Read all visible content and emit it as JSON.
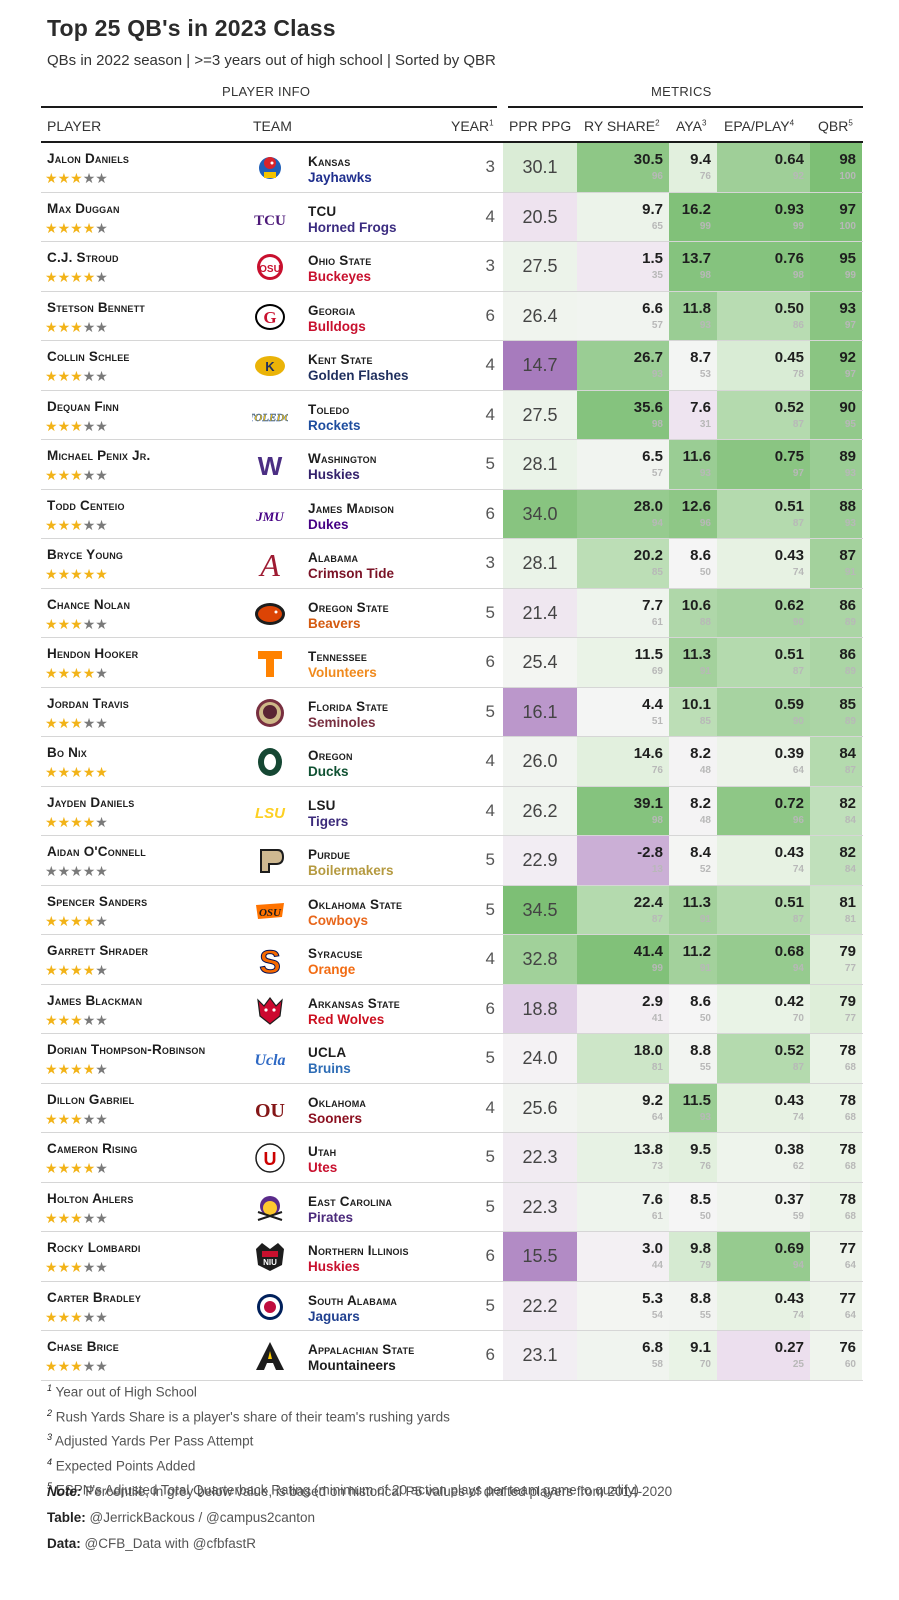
{
  "title": "Top 25 QB's in 2023 Class",
  "subtitle": "QBs in 2022 season | >=3 years out of high school | Sorted by QBR",
  "groups": {
    "player_info": "PLAYER INFO",
    "metrics": "METRICS"
  },
  "headers": {
    "player": "PLAYER",
    "team": "TEAM",
    "year": "YEAR",
    "year_sup": "1",
    "ppr": "PPR PPG",
    "ry": "RY SHARE",
    "ry_sup": "2",
    "aya": "AYA",
    "aya_sup": "3",
    "epa": "EPA/PLAY",
    "epa_sup": "4",
    "qbr": "QBR",
    "qbr_sup": "5"
  },
  "colors": {
    "green_dark": "#7dbf75",
    "green_light": "#e6f2e2",
    "neutral": "#f5f5f5",
    "purple_light": "#ecdfee",
    "purple_dark": "#a77bbd",
    "star_on": "#f2b318",
    "star_off": "#7a7a7a"
  },
  "chart_data": {
    "type": "table",
    "columns": [
      "Player",
      "Stars",
      "School",
      "Mascot",
      "Year",
      "PPR PPG",
      "RY Share",
      "RY Share Pct",
      "AYA",
      "AYA Pct",
      "EPA/Play",
      "EPA Pct",
      "QBR",
      "QBR Pct"
    ],
    "rows": [
      {
        "player": "Jalon Daniels",
        "stars": 3,
        "school": "Kansas",
        "mascot": "Jayhawks",
        "team_color": "#1f2f8e",
        "logo": "jayhawk-icon",
        "year": "3",
        "ppr": "30.1",
        "ry": "30.5",
        "ry_pct": "96",
        "aya": "9.4",
        "aya_pct": "76",
        "epa": "0.64",
        "epa_pct": "92",
        "qbr": "98",
        "qbr_pct": "100"
      },
      {
        "player": "Max Duggan",
        "stars": 4,
        "school": "TCU",
        "mascot": "Horned Frogs",
        "team_color": "#3b2c80",
        "logo": "tcu-icon",
        "year": "4",
        "ppr": "20.5",
        "ry": "9.7",
        "ry_pct": "65",
        "aya": "16.2",
        "aya_pct": "99",
        "epa": "0.93",
        "epa_pct": "99",
        "qbr": "97",
        "qbr_pct": "100"
      },
      {
        "player": "C.J. Stroud",
        "stars": 4,
        "school": "Ohio State",
        "mascot": "Buckeyes",
        "team_color": "#c8102e",
        "logo": "ohio-state-icon",
        "year": "3",
        "ppr": "27.5",
        "ry": "1.5",
        "ry_pct": "35",
        "aya": "13.7",
        "aya_pct": "98",
        "epa": "0.76",
        "epa_pct": "98",
        "qbr": "95",
        "qbr_pct": "99"
      },
      {
        "player": "Stetson Bennett",
        "stars": 3,
        "school": "Georgia",
        "mascot": "Bulldogs",
        "team_color": "#c8102e",
        "logo": "georgia-g-icon",
        "year": "6",
        "ppr": "26.4",
        "ry": "6.6",
        "ry_pct": "57",
        "aya": "11.8",
        "aya_pct": "93",
        "epa": "0.50",
        "epa_pct": "86",
        "qbr": "93",
        "qbr_pct": "97"
      },
      {
        "player": "Collin Schlee",
        "stars": 3,
        "school": "Kent State",
        "mascot": "Golden Flashes",
        "team_color": "#1f2f5e",
        "logo": "kent-state-icon",
        "year": "4",
        "ppr": "14.7",
        "ry": "26.7",
        "ry_pct": "93",
        "aya": "8.7",
        "aya_pct": "53",
        "epa": "0.45",
        "epa_pct": "78",
        "qbr": "92",
        "qbr_pct": "97"
      },
      {
        "player": "Dequan Finn",
        "stars": 3,
        "school": "Toledo",
        "mascot": "Rockets",
        "team_color": "#1e4d9e",
        "logo": "toledo-icon",
        "year": "4",
        "ppr": "27.5",
        "ry": "35.6",
        "ry_pct": "98",
        "aya": "7.6",
        "aya_pct": "31",
        "epa": "0.52",
        "epa_pct": "87",
        "qbr": "90",
        "qbr_pct": "95"
      },
      {
        "player": "Michael Penix Jr.",
        "stars": 3,
        "school": "Washington",
        "mascot": "Huskies",
        "team_color": "#33216b",
        "logo": "washington-w-icon",
        "year": "5",
        "ppr": "28.1",
        "ry": "6.5",
        "ry_pct": "57",
        "aya": "11.6",
        "aya_pct": "93",
        "epa": "0.75",
        "epa_pct": "97",
        "qbr": "89",
        "qbr_pct": "93"
      },
      {
        "player": "Todd Centeio",
        "stars": 3,
        "school": "James Madison",
        "mascot": "Dukes",
        "team_color": "#450084",
        "logo": "jmu-icon",
        "year": "6",
        "ppr": "34.0",
        "ry": "28.0",
        "ry_pct": "94",
        "aya": "12.6",
        "aya_pct": "96",
        "epa": "0.51",
        "epa_pct": "87",
        "qbr": "88",
        "qbr_pct": "93"
      },
      {
        "player": "Bryce Young",
        "stars": 5,
        "school": "Alabama",
        "mascot": "Crimson Tide",
        "team_color": "#7a1226",
        "logo": "alabama-a-icon",
        "year": "3",
        "ppr": "28.1",
        "ry": "20.2",
        "ry_pct": "85",
        "aya": "8.6",
        "aya_pct": "50",
        "epa": "0.43",
        "epa_pct": "74",
        "qbr": "87",
        "qbr_pct": "91"
      },
      {
        "player": "Chance Nolan",
        "stars": 3,
        "school": "Oregon State",
        "mascot": "Beavers",
        "team_color": "#d45a0f",
        "logo": "beaver-icon",
        "year": "5",
        "ppr": "21.4",
        "ry": "7.7",
        "ry_pct": "61",
        "aya": "10.6",
        "aya_pct": "88",
        "epa": "0.62",
        "epa_pct": "90",
        "qbr": "86",
        "qbr_pct": "89"
      },
      {
        "player": "Hendon Hooker",
        "stars": 4,
        "school": "Tennessee",
        "mascot": "Volunteers",
        "team_color": "#f08a1d",
        "logo": "tennessee-t-icon",
        "year": "6",
        "ppr": "25.4",
        "ry": "11.5",
        "ry_pct": "69",
        "aya": "11.3",
        "aya_pct": "91",
        "epa": "0.51",
        "epa_pct": "87",
        "qbr": "86",
        "qbr_pct": "89"
      },
      {
        "player": "Jordan Travis",
        "stars": 3,
        "school": "Florida State",
        "mascot": "Seminoles",
        "team_color": "#782f40",
        "logo": "seminole-icon",
        "year": "5",
        "ppr": "16.1",
        "ry": "4.4",
        "ry_pct": "51",
        "aya": "10.1",
        "aya_pct": "85",
        "epa": "0.59",
        "epa_pct": "90",
        "qbr": "85",
        "qbr_pct": "89"
      },
      {
        "player": "Bo Nix",
        "stars": 5,
        "school": "Oregon",
        "mascot": "Ducks",
        "team_color": "#0f5132",
        "logo": "oregon-o-icon",
        "year": "4",
        "ppr": "26.0",
        "ry": "14.6",
        "ry_pct": "76",
        "aya": "8.2",
        "aya_pct": "48",
        "epa": "0.39",
        "epa_pct": "64",
        "qbr": "84",
        "qbr_pct": "87"
      },
      {
        "player": "Jayden Daniels",
        "stars": 4,
        "school": "LSU",
        "mascot": "Tigers",
        "team_color": "#3b2a7a",
        "logo": "lsu-icon",
        "year": "4",
        "ppr": "26.2",
        "ry": "39.1",
        "ry_pct": "98",
        "aya": "8.2",
        "aya_pct": "48",
        "epa": "0.72",
        "epa_pct": "96",
        "qbr": "82",
        "qbr_pct": "84"
      },
      {
        "player": "Aidan O'Connell",
        "stars": 0,
        "school": "Purdue",
        "mascot": "Boilermakers",
        "team_color": "#b59a40",
        "logo": "purdue-p-icon",
        "year": "5",
        "ppr": "22.9",
        "ry": "-2.8",
        "ry_pct": "13",
        "aya": "8.4",
        "aya_pct": "52",
        "epa": "0.43",
        "epa_pct": "74",
        "qbr": "82",
        "qbr_pct": "84"
      },
      {
        "player": "Spencer Sanders",
        "stars": 4,
        "school": "Oklahoma State",
        "mascot": "Cowboys",
        "team_color": "#e8661a",
        "logo": "osu-icon",
        "year": "5",
        "ppr": "34.5",
        "ry": "22.4",
        "ry_pct": "87",
        "aya": "11.3",
        "aya_pct": "91",
        "epa": "0.51",
        "epa_pct": "87",
        "qbr": "81",
        "qbr_pct": "81"
      },
      {
        "player": "Garrett Shrader",
        "stars": 4,
        "school": "Syracuse",
        "mascot": "Orange",
        "team_color": "#f26b12",
        "logo": "syracuse-s-icon",
        "year": "4",
        "ppr": "32.8",
        "ry": "41.4",
        "ry_pct": "99",
        "aya": "11.2",
        "aya_pct": "91",
        "epa": "0.68",
        "epa_pct": "94",
        "qbr": "79",
        "qbr_pct": "77"
      },
      {
        "player": "James Blackman",
        "stars": 3,
        "school": "Arkansas State",
        "mascot": "Red Wolves",
        "team_color": "#cc0f1f",
        "logo": "red-wolf-icon",
        "year": "6",
        "ppr": "18.8",
        "ry": "2.9",
        "ry_pct": "41",
        "aya": "8.6",
        "aya_pct": "50",
        "epa": "0.42",
        "epa_pct": "70",
        "qbr": "79",
        "qbr_pct": "77"
      },
      {
        "player": "Dorian Thompson-Robinson",
        "stars": 4,
        "school": "UCLA",
        "mascot": "Bruins",
        "team_color": "#2d6cb5",
        "logo": "ucla-icon",
        "year": "5",
        "ppr": "24.0",
        "ry": "18.0",
        "ry_pct": "81",
        "aya": "8.8",
        "aya_pct": "55",
        "epa": "0.52",
        "epa_pct": "87",
        "qbr": "78",
        "qbr_pct": "68"
      },
      {
        "player": "Dillon Gabriel",
        "stars": 3,
        "school": "Oklahoma",
        "mascot": "Sooners",
        "team_color": "#8b0f1f",
        "logo": "ou-icon",
        "year": "4",
        "ppr": "25.6",
        "ry": "9.2",
        "ry_pct": "64",
        "aya": "11.5",
        "aya_pct": "93",
        "epa": "0.43",
        "epa_pct": "74",
        "qbr": "78",
        "qbr_pct": "68"
      },
      {
        "player": "Cameron Rising",
        "stars": 4,
        "school": "Utah",
        "mascot": "Utes",
        "team_color": "#c8102e",
        "logo": "utah-u-icon",
        "year": "5",
        "ppr": "22.3",
        "ry": "13.8",
        "ry_pct": "73",
        "aya": "9.5",
        "aya_pct": "76",
        "epa": "0.38",
        "epa_pct": "62",
        "qbr": "78",
        "qbr_pct": "68"
      },
      {
        "player": "Holton Ahlers",
        "stars": 3,
        "school": "East Carolina",
        "mascot": "Pirates",
        "team_color": "#4b2a7b",
        "logo": "pirate-icon",
        "year": "5",
        "ppr": "22.3",
        "ry": "7.6",
        "ry_pct": "61",
        "aya": "8.5",
        "aya_pct": "50",
        "epa": "0.37",
        "epa_pct": "59",
        "qbr": "78",
        "qbr_pct": "68"
      },
      {
        "player": "Rocky Lombardi",
        "stars": 3,
        "school": "Northern Illinois",
        "mascot": "Huskies",
        "team_color": "#c8102e",
        "logo": "niu-icon",
        "year": "6",
        "ppr": "15.5",
        "ry": "3.0",
        "ry_pct": "44",
        "aya": "9.8",
        "aya_pct": "79",
        "epa": "0.69",
        "epa_pct": "94",
        "qbr": "77",
        "qbr_pct": "64"
      },
      {
        "player": "Carter Bradley",
        "stars": 3,
        "school": "South Alabama",
        "mascot": "Jaguars",
        "team_color": "#1f3f8f",
        "logo": "jaguar-icon",
        "year": "5",
        "ppr": "22.2",
        "ry": "5.3",
        "ry_pct": "54",
        "aya": "8.8",
        "aya_pct": "55",
        "epa": "0.43",
        "epa_pct": "74",
        "qbr": "77",
        "qbr_pct": "64"
      },
      {
        "player": "Chase Brice",
        "stars": 3,
        "school": "Appalachian State",
        "mascot": "Mountaineers",
        "team_color": "#1d1d1d",
        "logo": "app-state-a-icon",
        "year": "6",
        "ppr": "23.1",
        "ry": "6.8",
        "ry_pct": "58",
        "aya": "9.1",
        "aya_pct": "70",
        "epa": "0.27",
        "epa_pct": "25",
        "qbr": "76",
        "qbr_pct": "60"
      }
    ]
  },
  "footnotes": {
    "f1": "Year out of High School",
    "f2": "Rush Yards Share is a player's share of their team's rushing yards",
    "f3": "Adjusted Yards Per Pass Attempt",
    "f4": "Expected Points Added",
    "f5": "ESPN's Adjusted Total Quarterback Rating (minimum of 20 action plays per team game to qualify)",
    "note_label": "Note:",
    "note": "Percentile, in grey below value, is based on historical P5 values of drafted players from 2014-2020",
    "table_label": "Table:",
    "table": "@JerrickBackous / @campus2canton",
    "data_label": "Data:",
    "data": "@CFB_Data with @cfbfastR"
  }
}
